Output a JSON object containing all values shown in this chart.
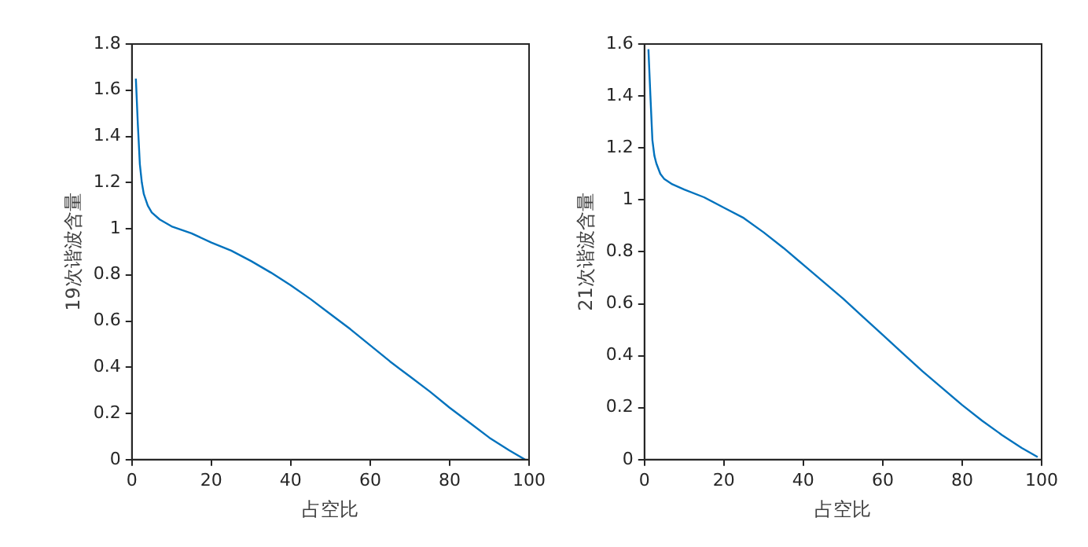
{
  "chart_data": [
    {
      "type": "line",
      "xlabel": "占空比",
      "ylabel": "19次谐波含量",
      "xlim": [
        0,
        100
      ],
      "xticks": [
        0,
        20,
        40,
        60,
        80,
        100
      ],
      "ylim": [
        0,
        1.8
      ],
      "yticks": [
        0,
        0.2,
        0.4,
        0.6,
        0.8,
        1,
        1.2,
        1.4,
        1.6,
        1.8
      ],
      "grid": false,
      "legend": false,
      "marker": "none",
      "line_style": "solid",
      "x": [
        1,
        1.5,
        2,
        2.5,
        3,
        4,
        5,
        7,
        10,
        15,
        20,
        25,
        30,
        35,
        40,
        45,
        50,
        55,
        60,
        65,
        70,
        75,
        80,
        85,
        90,
        95,
        99
      ],
      "series": [
        {
          "color": "#0072bd",
          "values": [
            1.65,
            1.45,
            1.28,
            1.2,
            1.15,
            1.1,
            1.07,
            1.04,
            1.01,
            0.98,
            0.94,
            0.905,
            0.86,
            0.81,
            0.755,
            0.695,
            0.63,
            0.565,
            0.495,
            0.425,
            0.36,
            0.295,
            0.225,
            0.16,
            0.095,
            0.04,
            0
          ]
        }
      ]
    },
    {
      "type": "line",
      "xlabel": "占空比",
      "ylabel": "21次谐波含量",
      "xlim": [
        0,
        100
      ],
      "xticks": [
        0,
        20,
        40,
        60,
        80,
        100
      ],
      "ylim": [
        0,
        1.6
      ],
      "yticks": [
        0,
        0.2,
        0.4,
        0.6,
        0.8,
        1,
        1.2,
        1.4,
        1.6
      ],
      "grid": false,
      "legend": false,
      "marker": "none",
      "line_style": "solid",
      "x": [
        1,
        1.5,
        2,
        2.5,
        3,
        4,
        5,
        7,
        10,
        15,
        20,
        25,
        30,
        35,
        40,
        45,
        50,
        55,
        60,
        65,
        70,
        75,
        80,
        85,
        90,
        95,
        99
      ],
      "series": [
        {
          "color": "#0072bd",
          "values": [
            1.58,
            1.4,
            1.23,
            1.17,
            1.14,
            1.1,
            1.08,
            1.06,
            1.04,
            1.01,
            0.97,
            0.93,
            0.875,
            0.815,
            0.75,
            0.685,
            0.62,
            0.55,
            0.48,
            0.41,
            0.34,
            0.275,
            0.21,
            0.15,
            0.095,
            0.045,
            0.01
          ]
        }
      ]
    }
  ]
}
